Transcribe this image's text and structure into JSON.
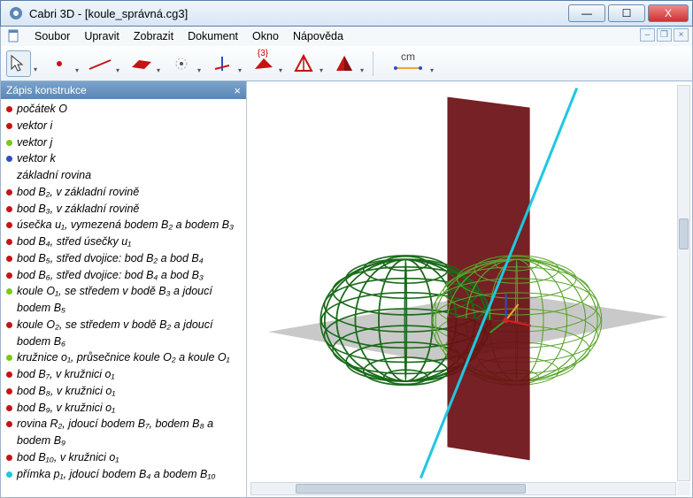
{
  "window": {
    "title": "Cabri 3D - [koule_správná.cg3]"
  },
  "win_buttons": {
    "min": "—",
    "max": "☐",
    "close": "X"
  },
  "menu": {
    "items": [
      "Soubor",
      "Upravit",
      "Zobrazit",
      "Dokument",
      "Okno",
      "Nápověda"
    ]
  },
  "mdi_buttons": {
    "min": "–",
    "restore": "❐",
    "close": "×"
  },
  "toolbar": {
    "annot_label": "{3}",
    "ruler_label": "cm",
    "colors": {
      "point": "#c51414",
      "line": "#c51414",
      "plane": "#c51414",
      "poly": "#c51414",
      "axis_blue": "#2a4fc0",
      "axis_red": "#c51414",
      "tetra_outline": "#c51414",
      "tetra_solid": "#c51414",
      "ruler": "#f2a23a"
    }
  },
  "side": {
    "title": "Zápis konstrukce",
    "close": "×",
    "arrow": "◄",
    "items": [
      {
        "c": "#c51414",
        "t": "počátek O"
      },
      {
        "c": "#c51414",
        "t": "vektor i"
      },
      {
        "c": "#7cc71a",
        "t": "vektor j"
      },
      {
        "c": "#2a4fc0",
        "t": "vektor k"
      },
      {
        "c": "",
        "t": "základní rovina"
      },
      {
        "c": "#c51414",
        "t": "bod B₂, v základní rovině"
      },
      {
        "c": "#c51414",
        "t": "bod B₃, v základní rovině"
      },
      {
        "c": "#c51414",
        "t": "úsečka u₁, vymezená bodem B₂ a bodem B₃"
      },
      {
        "c": "#c51414",
        "t": "bod B₄, střed úsečky u₁"
      },
      {
        "c": "#c51414",
        "t": "bod B₅, střed dvojice: bod B₂ a bod B₄"
      },
      {
        "c": "#c51414",
        "t": "bod B₆, střed dvojice: bod B₄ a bod B₃"
      },
      {
        "c": "#7cc71a",
        "t": "koule O₁, se středem v bodě B₃ a jdoucí bodem B₅"
      },
      {
        "c": "#c51414",
        "t": "koule O₂, se středem v bodě B₂ a jdoucí bodem B₆"
      },
      {
        "c": "#7cc71a",
        "t": "kružnice o₁, průsečnice koule O₂ a koule O₁"
      },
      {
        "c": "#c51414",
        "t": "bod B₇, v kružnici o₁"
      },
      {
        "c": "#c51414",
        "t": "bod B₈, v kružnici o₁"
      },
      {
        "c": "#c51414",
        "t": "bod B₉, v kružnici o₁"
      },
      {
        "c": "#c51414",
        "t": "rovina R₂, jdoucí bodem B₇, bodem B₈ a bodem B₉"
      },
      {
        "c": "#c51414",
        "t": "bod B₁₀, v kružnici o₁"
      },
      {
        "c": "#1ec8e0",
        "t": "přímka p₁, jdoucí bodem B₄ a bodem B₁₀"
      }
    ]
  },
  "scene": {
    "bg": "#ffffff",
    "ground_plane_color": "#bfbfbf",
    "vertical_plane_color": "#6a0e12",
    "line_color": "#1ec8e0",
    "sphere_left_stroke": "#1a6a1a",
    "sphere_right_stroke": "#5aa52d",
    "axis_red": "#d52222",
    "axis_green": "#2aa02a",
    "axis_blue": "#2a4fc0",
    "axis_orange": "#f2a23a"
  }
}
